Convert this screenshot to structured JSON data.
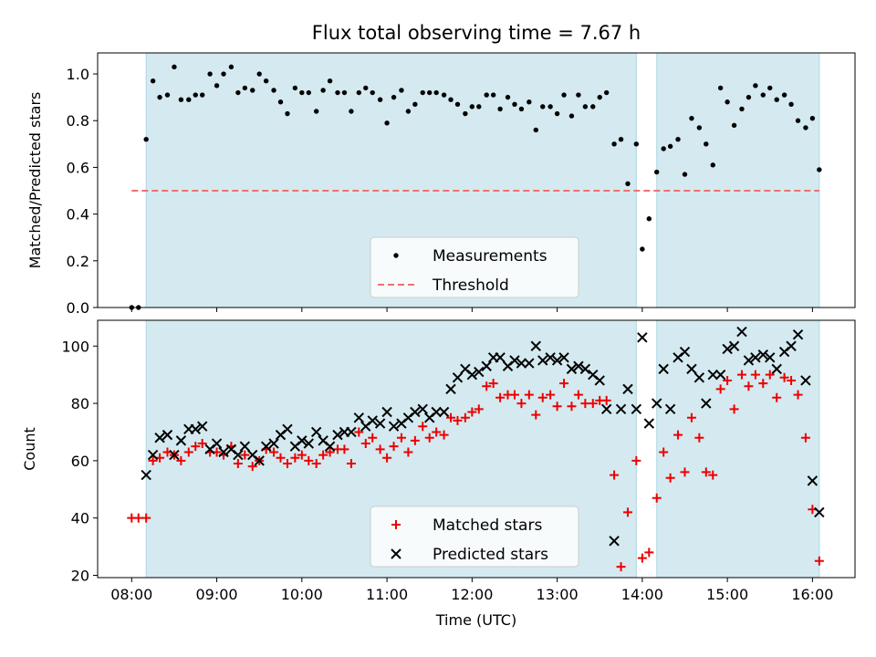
{
  "title": "Flux total observing time = 7.67 h",
  "colors": {
    "shade": "#d4eaf0",
    "shade_edge": "#add8e6",
    "threshold": "#f07070",
    "matched": "#ee0000",
    "predicted": "#000000",
    "measurement": "#000000"
  },
  "chart_data": [
    {
      "type": "scatter",
      "ylabel": "Matched/Predicted stars",
      "xlim": [
        7.6,
        16.5
      ],
      "ylim": [
        0,
        1.09
      ],
      "yticks": [
        0,
        0.2,
        0.4,
        0.6,
        0.8,
        1.0
      ],
      "ytick_labels": [
        "0.0",
        "0.2",
        "0.4",
        "0.6",
        "0.8",
        "1.0"
      ],
      "shaded_ranges": [
        [
          8.17,
          13.93
        ],
        [
          14.17,
          16.08
        ]
      ],
      "threshold": {
        "y": 0.5,
        "x_range": [
          8.0,
          16.08
        ],
        "label": "Threshold"
      },
      "legend": {
        "position": "bottom-center",
        "entries": [
          "Measurements",
          "Threshold"
        ]
      },
      "series": [
        {
          "name": "Measurements",
          "x": [
            8.0,
            8.08,
            8.17,
            8.25,
            8.33,
            8.42,
            8.5,
            8.58,
            8.67,
            8.75,
            8.83,
            8.92,
            9.0,
            9.08,
            9.17,
            9.25,
            9.33,
            9.42,
            9.5,
            9.58,
            9.67,
            9.75,
            9.83,
            9.92,
            10.0,
            10.08,
            10.17,
            10.25,
            10.33,
            10.42,
            10.5,
            10.58,
            10.67,
            10.75,
            10.83,
            10.92,
            11.0,
            11.08,
            11.17,
            11.25,
            11.33,
            11.42,
            11.5,
            11.58,
            11.67,
            11.75,
            11.83,
            11.92,
            12.0,
            12.08,
            12.17,
            12.25,
            12.33,
            12.42,
            12.5,
            12.58,
            12.67,
            12.75,
            12.83,
            12.92,
            13.0,
            13.08,
            13.17,
            13.25,
            13.33,
            13.42,
            13.5,
            13.58,
            13.67,
            13.75,
            13.83,
            13.93,
            14.0,
            14.08,
            14.17,
            14.25,
            14.33,
            14.42,
            14.5,
            14.58,
            14.67,
            14.75,
            14.83,
            14.92,
            15.0,
            15.08,
            15.17,
            15.25,
            15.33,
            15.42,
            15.5,
            15.58,
            15.67,
            15.75,
            15.83,
            15.92,
            16.0,
            16.08
          ],
          "y": [
            0,
            0,
            0.72,
            0.97,
            0.9,
            0.91,
            1.03,
            0.89,
            0.89,
            0.91,
            0.91,
            1.0,
            0.95,
            1.0,
            1.03,
            0.92,
            0.94,
            0.93,
            1.0,
            0.97,
            0.93,
            0.88,
            0.83,
            0.94,
            0.92,
            0.92,
            0.84,
            0.93,
            0.97,
            0.92,
            0.92,
            0.84,
            0.92,
            0.94,
            0.92,
            0.89,
            0.79,
            0.9,
            0.93,
            0.84,
            0.87,
            0.92,
            0.92,
            0.92,
            0.91,
            0.89,
            0.87,
            0.83,
            0.86,
            0.86,
            0.91,
            0.91,
            0.85,
            0.9,
            0.87,
            0.85,
            0.88,
            0.76,
            0.86,
            0.86,
            0.83,
            0.91,
            0.82,
            0.91,
            0.86,
            0.86,
            0.9,
            0.92,
            0.7,
            0.72,
            0.53,
            0.7,
            0.25,
            0.38,
            0.58,
            0.68,
            0.69,
            0.72,
            0.57,
            0.81,
            0.77,
            0.7,
            0.61,
            0.94,
            0.88,
            0.78,
            0.85,
            0.9,
            0.95,
            0.91,
            0.94,
            0.89,
            0.91,
            0.87,
            0.8,
            0.77,
            0.81,
            0.59
          ]
        }
      ]
    },
    {
      "type": "scatter",
      "xlabel": "Time (UTC)",
      "ylabel": "Count",
      "xlim": [
        7.6,
        16.5
      ],
      "ylim": [
        19.2,
        109
      ],
      "yticks": [
        20,
        40,
        60,
        80,
        100
      ],
      "xticks": [
        8,
        9,
        10,
        11,
        12,
        13,
        14,
        15,
        16
      ],
      "xtick_labels": [
        "08:00",
        "09:00",
        "10:00",
        "11:00",
        "12:00",
        "13:00",
        "14:00",
        "15:00",
        "16:00"
      ],
      "shaded_ranges": [
        [
          8.17,
          13.93
        ],
        [
          14.17,
          16.08
        ]
      ],
      "legend": {
        "position": "bottom-center",
        "entries": [
          "Matched stars",
          "Predicted stars"
        ]
      },
      "series": [
        {
          "name": "Matched stars",
          "x": [
            8.0,
            8.08,
            8.17,
            8.25,
            8.33,
            8.42,
            8.5,
            8.58,
            8.67,
            8.75,
            8.83,
            8.92,
            9.0,
            9.08,
            9.17,
            9.25,
            9.33,
            9.42,
            9.5,
            9.58,
            9.67,
            9.75,
            9.83,
            9.92,
            10.0,
            10.08,
            10.17,
            10.25,
            10.33,
            10.42,
            10.5,
            10.58,
            10.67,
            10.75,
            10.83,
            10.92,
            11.0,
            11.08,
            11.17,
            11.25,
            11.33,
            11.42,
            11.5,
            11.58,
            11.67,
            11.75,
            11.83,
            11.92,
            12.0,
            12.08,
            12.17,
            12.25,
            12.33,
            12.42,
            12.5,
            12.58,
            12.67,
            12.75,
            12.83,
            12.92,
            13.0,
            13.08,
            13.17,
            13.25,
            13.33,
            13.42,
            13.5,
            13.58,
            13.67,
            13.75,
            13.83,
            13.93,
            14.0,
            14.08,
            14.17,
            14.25,
            14.33,
            14.42,
            14.5,
            14.58,
            14.67,
            14.75,
            14.83,
            14.92,
            15.0,
            15.08,
            15.17,
            15.25,
            15.33,
            15.42,
            15.5,
            15.58,
            15.67,
            15.75,
            15.83,
            15.92,
            16.0,
            16.08
          ],
          "y": [
            40,
            40,
            40,
            60,
            61,
            63,
            62,
            60,
            63,
            65,
            66,
            63,
            63,
            62,
            65,
            59,
            62,
            58,
            60,
            64,
            63,
            61,
            59,
            61,
            62,
            60,
            59,
            62,
            63,
            64,
            64,
            59,
            70,
            66,
            68,
            64,
            61,
            65,
            68,
            63,
            67,
            72,
            68,
            70,
            69,
            75,
            74,
            75,
            77,
            78,
            86,
            87,
            82,
            83,
            83,
            80,
            83,
            76,
            82,
            83,
            79,
            87,
            79,
            83,
            80,
            80,
            81,
            81,
            55,
            23,
            42,
            60,
            26,
            28,
            47,
            63,
            54,
            69,
            56,
            75,
            68,
            56,
            55,
            85,
            88,
            78,
            90,
            86,
            90,
            87,
            90,
            82,
            89,
            88,
            83,
            68,
            43,
            25
          ]
        },
        {
          "name": "Predicted stars",
          "x": [
            8.17,
            8.25,
            8.33,
            8.42,
            8.5,
            8.58,
            8.67,
            8.75,
            8.83,
            8.92,
            9.0,
            9.08,
            9.17,
            9.25,
            9.33,
            9.42,
            9.5,
            9.58,
            9.67,
            9.75,
            9.83,
            9.92,
            10.0,
            10.08,
            10.17,
            10.25,
            10.33,
            10.42,
            10.5,
            10.58,
            10.67,
            10.75,
            10.83,
            10.92,
            11.0,
            11.08,
            11.17,
            11.25,
            11.33,
            11.42,
            11.5,
            11.58,
            11.67,
            11.75,
            11.83,
            11.92,
            12.0,
            12.08,
            12.17,
            12.25,
            12.33,
            12.42,
            12.5,
            12.58,
            12.67,
            12.75,
            12.83,
            12.92,
            13.0,
            13.08,
            13.17,
            13.25,
            13.33,
            13.42,
            13.5,
            13.58,
            13.67,
            13.75,
            13.83,
            13.93,
            14.0,
            14.08,
            14.17,
            14.25,
            14.33,
            14.42,
            14.5,
            14.58,
            14.67,
            14.75,
            14.83,
            14.92,
            15.0,
            15.08,
            15.17,
            15.25,
            15.33,
            15.42,
            15.5,
            15.58,
            15.67,
            15.75,
            15.83,
            15.92,
            16.0,
            16.08
          ],
          "y": [
            55,
            62,
            68,
            69,
            62,
            67,
            71,
            71,
            72,
            64,
            66,
            63,
            64,
            62,
            65,
            62,
            60,
            65,
            66,
            69,
            71,
            65,
            67,
            66,
            70,
            67,
            65,
            69,
            70,
            70,
            75,
            72,
            74,
            73,
            77,
            72,
            73,
            75,
            77,
            78,
            75,
            77,
            77,
            85,
            89,
            92,
            90,
            91,
            93,
            96,
            96,
            93,
            95,
            94,
            94,
            100,
            95,
            96,
            95,
            96,
            92,
            93,
            92,
            90,
            88,
            78,
            32,
            78,
            85,
            78,
            103,
            73,
            80,
            92,
            78,
            96,
            98,
            92,
            89,
            80,
            90,
            90,
            99,
            100,
            105,
            95,
            96,
            97,
            96,
            92,
            98,
            100,
            104,
            88,
            53,
            42
          ]
        }
      ]
    }
  ]
}
